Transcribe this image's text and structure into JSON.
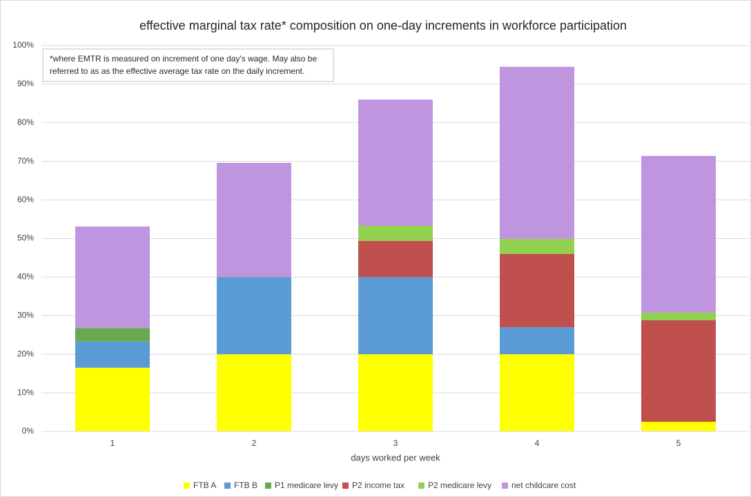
{
  "chart_data": {
    "type": "stacked-bar",
    "title": "effective marginal tax rate* composition on one-day increments in workforce participation",
    "annotation": [
      "*where EMTR is measured on increment of one day's wage. May also be",
      "referred to as as the effective average tax rate on the daily increment."
    ],
    "x_label": "days worked per week",
    "categories": [
      "1",
      "2",
      "3",
      "4",
      "5"
    ],
    "series": [
      {
        "name": "FTB A",
        "color": "#ffff00",
        "values": [
          16.5,
          20,
          20,
          20,
          2.5
        ]
      },
      {
        "name": "FTB B",
        "color": "#5b9bd5",
        "values": [
          6.8,
          20,
          20,
          7.0,
          0
        ]
      },
      {
        "name": "P1 medicare levy",
        "color": "#6aa84f",
        "values": [
          3.5,
          0,
          0,
          0,
          0
        ]
      },
      {
        "name": "P2 income tax",
        "color": "#c0504d",
        "values": [
          0,
          0,
          9.4,
          19.0,
          26.3
        ]
      },
      {
        "name": "P2 medicare levy",
        "color": "#92d050",
        "values": [
          0,
          0,
          3.9,
          3.9,
          2.0
        ]
      },
      {
        "name": "net childcare cost",
        "color": "#bf95df",
        "values": [
          26.3,
          29.6,
          32.7,
          44.6,
          40.6
        ]
      }
    ],
    "ylim": [
      0,
      100
    ],
    "yticks": [
      {
        "value": 0,
        "label": "0%"
      },
      {
        "value": 10,
        "label": "10%"
      },
      {
        "value": 20,
        "label": "20%"
      },
      {
        "value": 30,
        "label": "30%"
      },
      {
        "value": 40,
        "label": "40%"
      },
      {
        "value": 50,
        "label": "50%"
      },
      {
        "value": 60,
        "label": "60%"
      },
      {
        "value": 70,
        "label": "70%"
      },
      {
        "value": 80,
        "label": "80%"
      },
      {
        "value": 90,
        "label": "90%"
      },
      {
        "value": 100,
        "label": "100%"
      }
    ],
    "grid": true,
    "legend": "bottom"
  }
}
